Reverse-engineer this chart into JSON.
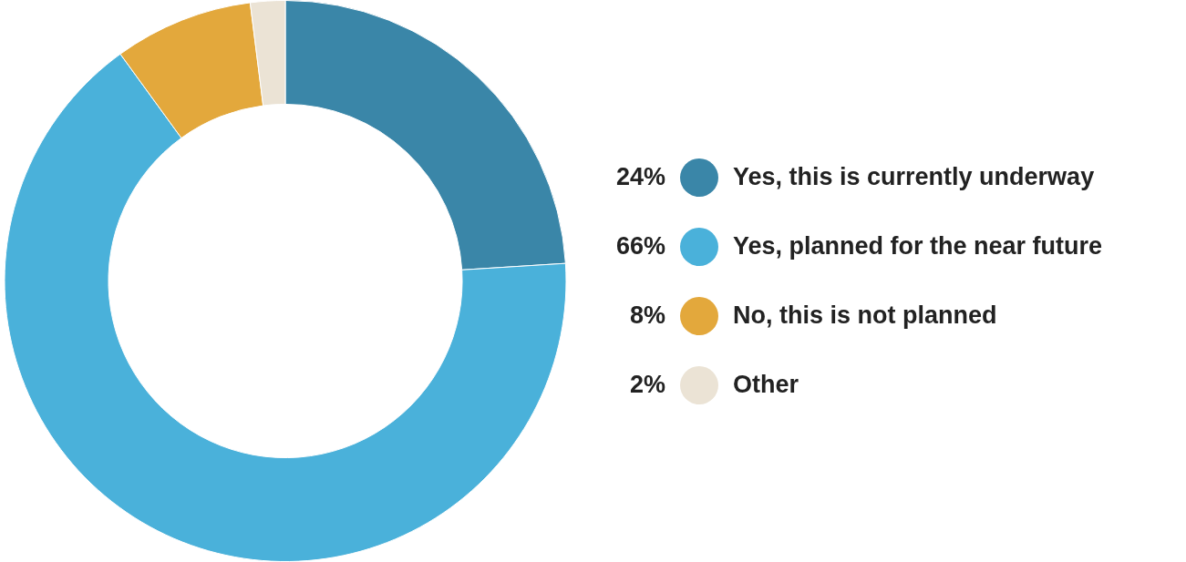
{
  "chart_data": {
    "type": "donut",
    "categories": [
      "Yes, this is currently underway",
      "Yes, planned for the near future",
      "No, this is not planned",
      "Other"
    ],
    "values": [
      24,
      66,
      8,
      2
    ],
    "colors": [
      "#3a86a8",
      "#4ab1da",
      "#e3a83c",
      "#ebe3d5"
    ],
    "value_labels": [
      "24%",
      "66%",
      "8%",
      "2%"
    ],
    "legend": "right"
  }
}
